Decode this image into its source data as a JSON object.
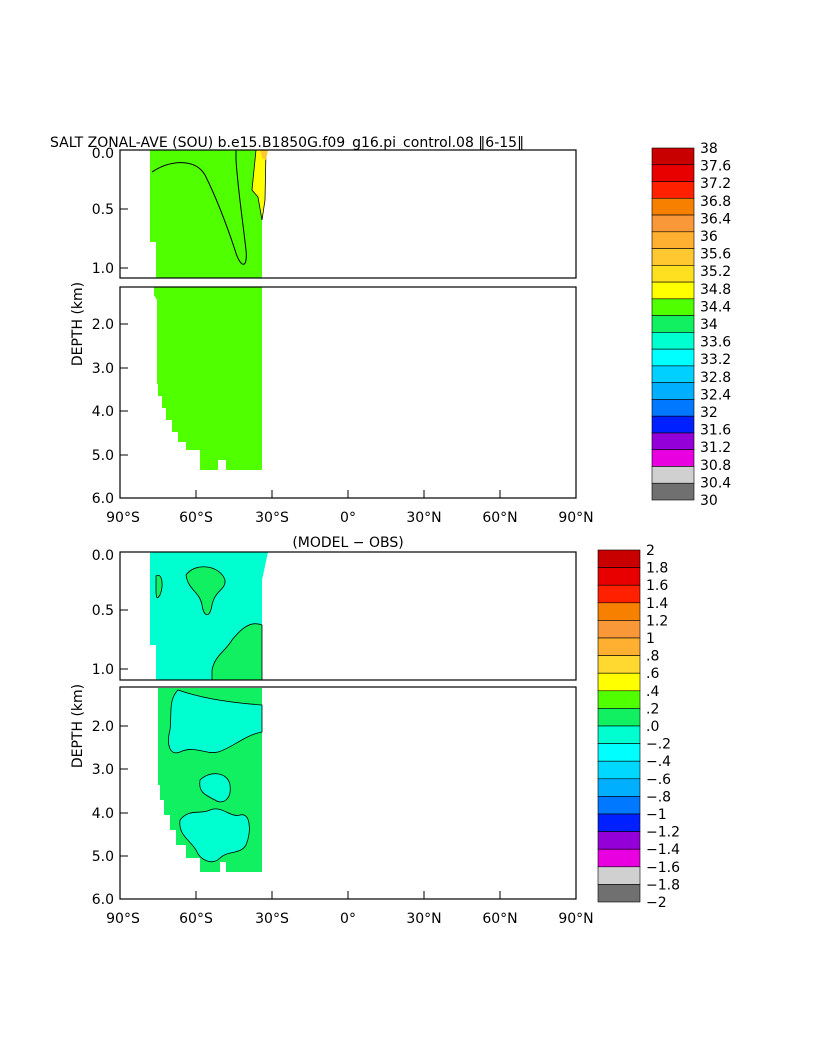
{
  "chart_data": [
    {
      "type": "heatmap",
      "title": "SALT ZONAL-AVE (SOU) b.e15.B1850G.f09_g16.pi_control.08 ‖6-15‖",
      "ylabel": "DEPTH (km)",
      "xlabel": "",
      "x_ticks": [
        "90°S",
        "60°S",
        "30°S",
        "0°",
        "30°N",
        "60°N",
        "90°N"
      ],
      "y_ticks_upper": [
        "0.0",
        "0.5",
        "1.0"
      ],
      "y_ticks_lower": [
        "2.0",
        "3.0",
        "4.0",
        "5.0",
        "6.0"
      ],
      "xlim": [
        -90,
        90
      ],
      "ylim_upper": [
        0,
        1.1
      ],
      "ylim_lower": [
        1.1,
        6.0
      ],
      "colorbar_labels": [
        "38",
        "37.6",
        "37.2",
        "36.8",
        "36.4",
        "36",
        "35.6",
        "35.2",
        "34.8",
        "34.4",
        "34",
        "33.6",
        "33.2",
        "32.8",
        "32.4",
        "32",
        "31.6",
        "31.2",
        "30.8",
        "30.4",
        "30"
      ],
      "colorbar_colors": [
        "#c80000",
        "#e80000",
        "#ff2000",
        "#f88000",
        "#f89838",
        "#ffb030",
        "#ffc830",
        "#ffe020",
        "#ffff00",
        "#50ff00",
        "#10f060",
        "#00ffd0",
        "#00ffff",
        "#00d0ff",
        "#00b0ff",
        "#0078ff",
        "#0020ff",
        "#9400d8",
        "#e800e0",
        "#d0d0d0",
        "#707070"
      ],
      "fields": [
        {
          "value_range": "34.4-34.8",
          "lat_range": [
            -78,
            -34
          ],
          "depth_range": [
            0,
            5.4
          ],
          "color": "#50ff00"
        },
        {
          "value_range": "34.8-35.2",
          "lat_range": [
            -37,
            -34
          ],
          "depth_range": [
            0,
            0.4
          ],
          "color": "#ffff00"
        }
      ]
    },
    {
      "type": "heatmap",
      "title": "(MODEL − OBS)",
      "ylabel": "DEPTH (km)",
      "xlabel": "",
      "x_ticks": [
        "90°S",
        "60°S",
        "30°S",
        "0°",
        "30°N",
        "60°N",
        "90°N"
      ],
      "y_ticks_upper": [
        "0.0",
        "0.5",
        "1.0"
      ],
      "y_ticks_lower": [
        "2.0",
        "3.0",
        "4.0",
        "5.0",
        "6.0"
      ],
      "xlim": [
        -90,
        90
      ],
      "ylim_upper": [
        0,
        1.1
      ],
      "ylim_lower": [
        1.1,
        6.0
      ],
      "colorbar_labels": [
        "2",
        "1.8",
        "1.6",
        "1.4",
        "1.2",
        "1",
        ".8",
        ".6",
        ".4",
        ".2",
        ".0",
        "−.2",
        "−.4",
        "−.6",
        "−.8",
        "−1",
        "−1.2",
        "−1.4",
        "−1.6",
        "−1.8",
        "−2"
      ],
      "colorbar_colors": [
        "#c80000",
        "#e80000",
        "#ff2000",
        "#f88000",
        "#f89838",
        "#ffb030",
        "#ffd830",
        "#ffff00",
        "#50ff00",
        "#10f060",
        "#00ffd0",
        "#00ffff",
        "#00d8ff",
        "#00b0ff",
        "#0078ff",
        "#0020ff",
        "#9400d8",
        "#e800e0",
        "#d0d0d0",
        "#707070"
      ],
      "fields": [
        {
          "value_range": "-0.2-0.0",
          "lat_range": [
            -78,
            -34
          ],
          "depth_range": [
            0,
            5.4
          ],
          "color": "#00ffd0"
        },
        {
          "value_range": "0.0-0.2",
          "lat_range": [
            -78,
            -34
          ],
          "depth_range": [
            0,
            5.4
          ],
          "color": "#10f060"
        }
      ]
    }
  ]
}
